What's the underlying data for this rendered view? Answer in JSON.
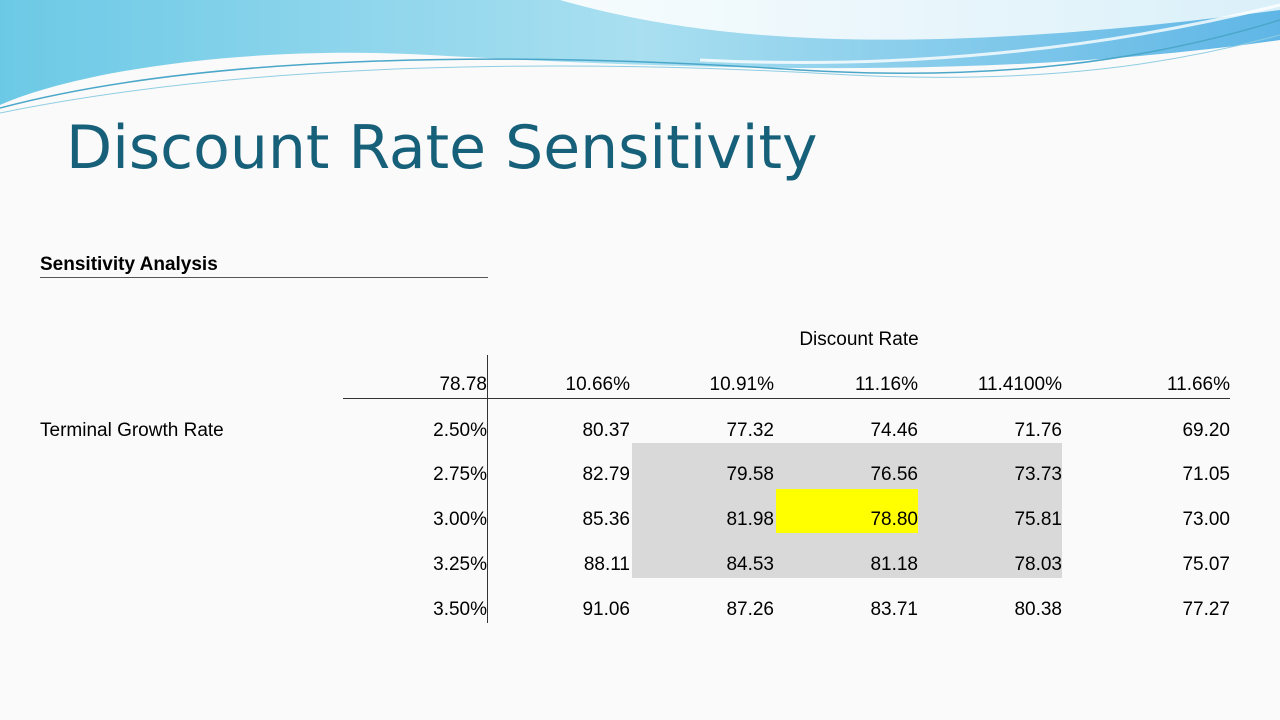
{
  "slide": {
    "title": "Discount Rate Sensitivity"
  },
  "analysis": {
    "heading": "Sensitivity Analysis",
    "column_group_label": "Discount Rate",
    "row_group_label": "Terminal Growth Rate",
    "corner_value": "78.78",
    "discount_rates": [
      "10.66%",
      "10.91%",
      "11.16%",
      "11.4100%",
      "11.66%"
    ],
    "growth_rates": [
      "2.50%",
      "2.75%",
      "3.00%",
      "3.25%",
      "3.50%"
    ],
    "values": [
      [
        "80.37",
        "77.32",
        "74.46",
        "71.76",
        "69.20"
      ],
      [
        "82.79",
        "79.58",
        "76.56",
        "73.73",
        "71.05"
      ],
      [
        "85.36",
        "81.98",
        "78.80",
        "75.81",
        "73.00"
      ],
      [
        "88.11",
        "84.53",
        "81.18",
        "78.03",
        "75.07"
      ],
      [
        "91.06",
        "87.26",
        "83.71",
        "80.38",
        "77.27"
      ]
    ],
    "colors": {
      "shaded_cells": "#d9d9d9",
      "highlighted_cell": "#ffff00",
      "title": "#17607a"
    }
  }
}
